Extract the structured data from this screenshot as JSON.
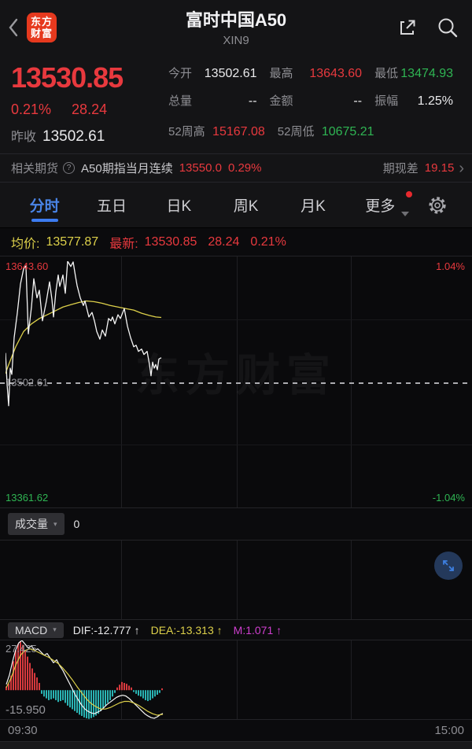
{
  "icons": {
    "caret_down": "▾",
    "chevron_right": "›",
    "question": "?",
    "up_arrow": "↑"
  },
  "colors": {
    "up_red": "#e8393e",
    "down_green": "#2fb553",
    "neutral_white": "#eaeaec",
    "avg_yellow": "#ddd04a",
    "tab_blue": "#4a85e8",
    "macd_teal": "#2ab5b5",
    "macd_magenta": "#cf3fcf",
    "brand_orange": "#e6391e"
  },
  "header": {
    "title": "富时中国A50",
    "subtitle": "XIN9",
    "logo_line1": "东方",
    "logo_line2": "财富"
  },
  "quote": {
    "price": "13530.85",
    "change_pct": "0.21%",
    "change_val": "28.24",
    "prev_close_label": "昨收",
    "prev_close_value": "13502.61",
    "stats": [
      {
        "label": "今开",
        "value": "13502.61",
        "color": "#eaeaec"
      },
      {
        "label": "最高",
        "value": "13643.60",
        "color": "#e8393e"
      },
      {
        "label": "最低",
        "value": "13474.93",
        "color": "#2fb553"
      },
      {
        "label": "总量",
        "value": "--",
        "color": "#eaeaec"
      },
      {
        "label": "金额",
        "value": "--",
        "color": "#eaeaec"
      },
      {
        "label": "振幅",
        "value": "1.25%",
        "color": "#eaeaec"
      },
      {
        "label": "52周高",
        "value": "15167.08",
        "color": "#e8393e"
      },
      {
        "label": "52周低",
        "value": "10675.21",
        "color": "#2fb553"
      }
    ]
  },
  "futures_bar": {
    "label": "相关期货",
    "name": "A50期指当月连续",
    "price": "13550.0",
    "pct": "0.29%",
    "spread_label": "期现差",
    "spread": "19.15"
  },
  "tabs": [
    {
      "label": "分时",
      "active": true
    },
    {
      "label": "五日",
      "active": false
    },
    {
      "label": "日K",
      "active": false
    },
    {
      "label": "周K",
      "active": false
    },
    {
      "label": "月K",
      "active": false
    },
    {
      "label": "更多",
      "active": false,
      "badge": true
    }
  ],
  "info_row": {
    "avg_label": "均价:",
    "avg_value": "13577.87",
    "last_label": "最新:",
    "last_value": "13530.85",
    "last_chg": "28.24",
    "last_pct": "0.21%"
  },
  "main_chart_labels": {
    "high": "13643.60",
    "high_pct": "1.04%",
    "mid": "13502.61",
    "low": "13361.62",
    "low_pct": "-1.04%",
    "watermark": "东方财富"
  },
  "volume_panel": {
    "selector": "成交量",
    "value": "0"
  },
  "macd_panel": {
    "selector": "MACD",
    "dif": "DIF:-12.777 ↑",
    "dea": "DEA:-13.313 ↑",
    "m": "M:1.071 ↑",
    "max_label": "27.425",
    "min_label": "-15.950"
  },
  "time_axis": {
    "start": "09:30",
    "end": "15:00"
  },
  "chart_data": [
    {
      "type": "line",
      "title": "分时 (intraday price, FTSE China A50 / XIN9)",
      "x_range": [
        "09:30",
        "15:00"
      ],
      "grid_vlines_pct": [
        25.1,
        50.25,
        75.0
      ],
      "y_axis": {
        "top": 13643.6,
        "mid": 13502.61,
        "bottom": 13361.62,
        "top_pct": "1.04%",
        "bottom_pct": "-1.04%"
      },
      "series": [
        {
          "name": "avg_price",
          "color": "#ddd04a",
          "points": [
            [
              0,
              13512.4
            ],
            [
              0.51,
              13520.4
            ],
            [
              2.22,
              13543.7
            ],
            [
              3.93,
              13561.5
            ],
            [
              5.64,
              13570.4
            ],
            [
              7.35,
              13576.7
            ],
            [
              9.06,
              13581.1
            ],
            [
              10.77,
              13585.6
            ],
            [
              12.48,
              13590.1
            ],
            [
              14.19,
              13592.8
            ],
            [
              15.9,
              13595.4
            ],
            [
              17.61,
              13597.2
            ],
            [
              19.32,
              13596.3
            ],
            [
              21.03,
              13594.5
            ],
            [
              22.74,
              13591.9
            ],
            [
              24.44,
              13590.1
            ],
            [
              26.15,
              13588.3
            ],
            [
              27.86,
              13586.5
            ],
            [
              29.57,
              13582.9
            ],
            [
              31.28,
              13580.2
            ],
            [
              32.65,
              13578.5
            ],
            [
              33.85,
              13577.9
            ]
          ]
        },
        {
          "name": "price",
          "color": "#f5f5f5",
          "points": [
            [
              0,
              13536.5
            ],
            [
              0.34,
              13500.8
            ],
            [
              0.68,
              13474.9
            ],
            [
              1.03,
              13518.7
            ],
            [
              1.37,
              13511.5
            ],
            [
              1.88,
              13554.4
            ],
            [
              2.56,
              13582.9
            ],
            [
              3.25,
              13616.8
            ],
            [
              3.93,
              13634.7
            ],
            [
              4.44,
              13638.2
            ],
            [
              4.96,
              13558.8
            ],
            [
              5.64,
              13590.1
            ],
            [
              6.15,
              13623.1
            ],
            [
              6.84,
              13600.8
            ],
            [
              7.35,
              13609.7
            ],
            [
              8.03,
              13574.0
            ],
            [
              8.89,
              13597.2
            ],
            [
              9.57,
              13619.5
            ],
            [
              10.09,
              13599.0
            ],
            [
              10.43,
              13578.5
            ],
            [
              10.94,
              13607.9
            ],
            [
              11.45,
              13627.5
            ],
            [
              11.79,
              13614.2
            ],
            [
              12.48,
              13627.5
            ],
            [
              12.99,
              13606.1
            ],
            [
              13.5,
              13643.6
            ],
            [
              14.19,
              13637.4
            ],
            [
              14.7,
              13642.7
            ],
            [
              15.21,
              13625.8
            ],
            [
              15.56,
              13615.1
            ],
            [
              16.24,
              13600.8
            ],
            [
              16.92,
              13591.9
            ],
            [
              17.26,
              13597.2
            ],
            [
              18.12,
              13578.5
            ],
            [
              18.8,
              13583.8
            ],
            [
              19.32,
              13574.0
            ],
            [
              19.83,
              13561.5
            ],
            [
              20.51,
              13552.6
            ],
            [
              21.03,
              13563.3
            ],
            [
              21.71,
              13556.2
            ],
            [
              22.39,
              13576.7
            ],
            [
              22.91,
              13574.0
            ],
            [
              23.25,
              13578.5
            ],
            [
              23.76,
              13570.4
            ],
            [
              24.44,
              13581.1
            ],
            [
              24.96,
              13576.7
            ],
            [
              25.81,
              13588.3
            ],
            [
              26.5,
              13567.7
            ],
            [
              27.18,
              13554.4
            ],
            [
              27.86,
              13543.7
            ],
            [
              28.38,
              13545.5
            ],
            [
              28.89,
              13538.3
            ],
            [
              29.57,
              13541.0
            ],
            [
              30.09,
              13534.7
            ],
            [
              30.77,
              13538.3
            ],
            [
              31.28,
              13523.1
            ],
            [
              31.62,
              13509.8
            ],
            [
              31.97,
              13525.8
            ],
            [
              32.31,
              13518.7
            ],
            [
              32.65,
              13523.1
            ],
            [
              32.99,
              13516.9
            ],
            [
              33.33,
              13529.4
            ],
            [
              33.85,
              13530.9
            ]
          ]
        }
      ]
    },
    {
      "type": "bar",
      "title": "成交量 (volume)",
      "values": [],
      "current_value": 0
    },
    {
      "type": "macd",
      "title": "MACD",
      "y_axis": {
        "max": 27.425,
        "min": -15.95
      },
      "latest": {
        "dif": -12.777,
        "dea": -13.313,
        "m": 1.071
      },
      "histogram": [
        [
          0.17,
          2.0
        ],
        [
          0.68,
          3.5
        ],
        [
          1.2,
          8
        ],
        [
          1.71,
          16
        ],
        [
          2.22,
          22
        ],
        [
          2.74,
          25.5
        ],
        [
          3.25,
          27
        ],
        [
          3.76,
          25
        ],
        [
          4.27,
          22
        ],
        [
          4.79,
          18.5
        ],
        [
          5.3,
          15
        ],
        [
          5.81,
          12
        ],
        [
          6.32,
          9.5
        ],
        [
          6.84,
          7
        ],
        [
          7.35,
          4
        ],
        [
          7.86,
          -2
        ],
        [
          8.38,
          -3.5
        ],
        [
          8.89,
          -4.5
        ],
        [
          9.4,
          -5.5
        ],
        [
          9.91,
          -5
        ],
        [
          10.43,
          -4.5
        ],
        [
          10.94,
          -5.5
        ],
        [
          11.45,
          -6.5
        ],
        [
          11.97,
          -6
        ],
        [
          12.48,
          -5.5
        ],
        [
          12.99,
          -7
        ],
        [
          13.5,
          -8.5
        ],
        [
          14.02,
          -9.5
        ],
        [
          14.53,
          -10.5
        ],
        [
          15.04,
          -11.5
        ],
        [
          15.56,
          -12.5
        ],
        [
          16.07,
          -13.5
        ],
        [
          16.58,
          -14.2
        ],
        [
          17.09,
          -15
        ],
        [
          17.61,
          -15.5
        ],
        [
          18.12,
          -15.8
        ],
        [
          18.63,
          -15.4
        ],
        [
          19.15,
          -14.8
        ],
        [
          19.66,
          -14
        ],
        [
          20.17,
          -13
        ],
        [
          20.68,
          -11.5
        ],
        [
          21.2,
          -10
        ],
        [
          21.71,
          -8.5
        ],
        [
          22.22,
          -7
        ],
        [
          22.74,
          -5.5
        ],
        [
          23.25,
          -3.5
        ],
        [
          23.76,
          -1.5
        ],
        [
          24.27,
          1.5
        ],
        [
          24.79,
          3
        ],
        [
          25.3,
          4.5
        ],
        [
          25.81,
          4
        ],
        [
          26.32,
          3.5
        ],
        [
          26.84,
          2.5
        ],
        [
          27.35,
          1.5
        ],
        [
          27.86,
          -1
        ],
        [
          28.38,
          -2
        ],
        [
          28.89,
          -3
        ],
        [
          29.4,
          -3.5
        ],
        [
          29.91,
          -4.5
        ],
        [
          30.43,
          -5.5
        ],
        [
          30.94,
          -6
        ],
        [
          31.45,
          -5.5
        ],
        [
          31.97,
          -4.5
        ],
        [
          32.48,
          -3.5
        ],
        [
          32.99,
          -2.5
        ],
        [
          33.5,
          -1.5
        ],
        [
          34.02,
          1.0
        ]
      ],
      "series": [
        {
          "name": "DIF",
          "color": "#f5f5f5",
          "points": [
            [
              0.17,
              3.2
            ],
            [
              0.85,
              8.3
            ],
            [
              1.54,
              15.9
            ],
            [
              2.22,
              22.3
            ],
            [
              2.91,
              26.2
            ],
            [
              3.59,
              27.4
            ],
            [
              4.27,
              25.3
            ],
            [
              4.96,
              23.2
            ],
            [
              5.64,
              24.5
            ],
            [
              6.32,
              21.9
            ],
            [
              7.01,
              22.8
            ],
            [
              7.69,
              21.1
            ],
            [
              8.38,
              19.3
            ],
            [
              9.06,
              20.2
            ],
            [
              9.74,
              17.6
            ],
            [
              10.43,
              15.1
            ],
            [
              11.11,
              16.8
            ],
            [
              11.79,
              13.4
            ],
            [
              12.48,
              10.8
            ],
            [
              13.16,
              7.4
            ],
            [
              13.85,
              4.0
            ],
            [
              14.53,
              0.6
            ],
            [
              15.21,
              -2.8
            ],
            [
              15.9,
              -5.7
            ],
            [
              16.58,
              -8.3
            ],
            [
              17.26,
              -10.4
            ],
            [
              17.95,
              -11.7
            ],
            [
              18.63,
              -12.5
            ],
            [
              19.32,
              -13.0
            ],
            [
              20.0,
              -12.1
            ],
            [
              20.68,
              -11.3
            ],
            [
              21.37,
              -9.6
            ],
            [
              22.05,
              -7.9
            ],
            [
              22.74,
              -6.6
            ],
            [
              23.42,
              -5.3
            ],
            [
              24.1,
              -4.0
            ],
            [
              24.79,
              -3.2
            ],
            [
              25.47,
              -2.8
            ],
            [
              26.15,
              -3.2
            ],
            [
              26.84,
              -4.5
            ],
            [
              27.52,
              -6.2
            ],
            [
              28.21,
              -7.9
            ],
            [
              28.89,
              -9.6
            ],
            [
              29.57,
              -11.3
            ],
            [
              30.26,
              -13.0
            ],
            [
              30.94,
              -14.2
            ],
            [
              31.62,
              -15.1
            ],
            [
              32.31,
              -15.5
            ],
            [
              32.99,
              -14.7
            ],
            [
              33.68,
              -13.4
            ],
            [
              34.19,
              -12.8
            ]
          ]
        },
        {
          "name": "DEA",
          "color": "#ddd04a",
          "points": [
            [
              0.17,
              1.5
            ],
            [
              1.2,
              6.6
            ],
            [
              2.22,
              13.8
            ],
            [
              3.25,
              19.3
            ],
            [
              4.27,
              21.9
            ],
            [
              5.3,
              22.8
            ],
            [
              6.32,
              21.9
            ],
            [
              7.35,
              20.6
            ],
            [
              8.38,
              19.3
            ],
            [
              9.4,
              18.1
            ],
            [
              10.43,
              16.4
            ],
            [
              11.45,
              14.7
            ],
            [
              12.48,
              12.1
            ],
            [
              13.5,
              9.1
            ],
            [
              14.53,
              5.7
            ],
            [
              15.56,
              1.9
            ],
            [
              16.58,
              -1.5
            ],
            [
              17.61,
              -4.9
            ],
            [
              18.63,
              -7.4
            ],
            [
              19.66,
              -9.1
            ],
            [
              20.68,
              -10.4
            ],
            [
              21.71,
              -10.4
            ],
            [
              22.74,
              -9.6
            ],
            [
              23.76,
              -8.3
            ],
            [
              24.79,
              -7.0
            ],
            [
              25.81,
              -6.2
            ],
            [
              26.84,
              -6.2
            ],
            [
              27.86,
              -7.0
            ],
            [
              28.89,
              -8.3
            ],
            [
              29.91,
              -10.0
            ],
            [
              30.94,
              -11.7
            ],
            [
              31.97,
              -13.0
            ],
            [
              32.99,
              -13.8
            ],
            [
              34.19,
              -13.3
            ]
          ]
        }
      ],
      "bar_colors": {
        "positive": "#d93a3e",
        "negative": "#2ab5b5"
      }
    }
  ]
}
